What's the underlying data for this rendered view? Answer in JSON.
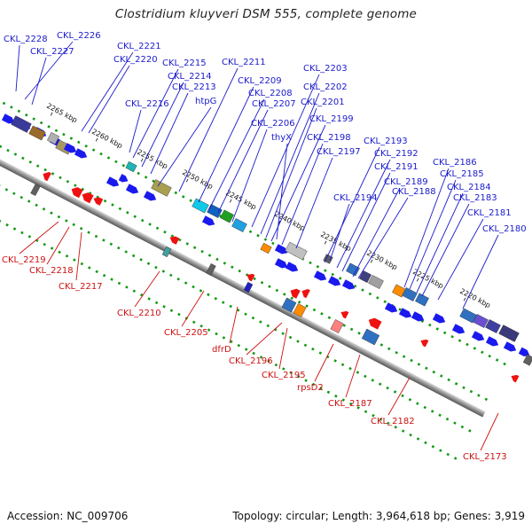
{
  "title": "Clostridium kluyveri DSM 555, complete genome",
  "footer": {
    "accession": "Accession: NC_009706",
    "summary": "Topology: circular; Length: 3,964,618 bp; Genes: 3,919"
  },
  "colors": {
    "forward_label": "#1a1acc",
    "reverse_label": "#cc1111",
    "forward_gene": "#1a1aee",
    "reverse_gene": "#ee1111",
    "dots": "#119911"
  },
  "kbp_ticks": [
    "2265 kbp",
    "2260 kbp",
    "2255 kbp",
    "2250 kbp",
    "2245 kbp",
    "2240 kbp",
    "2235 kbp",
    "2230 kbp",
    "2225 kbp",
    "2220 kbp"
  ],
  "forward_labels": [
    "CKL_2228",
    "CKL_2226",
    "CKL_2227",
    "CKL_2221",
    "CKL_2220",
    "CKL_2215",
    "CKL_2214",
    "CKL_2213",
    "CKL_2216",
    "htpG",
    "CKL_2211",
    "CKL_2209",
    "CKL_2208",
    "CKL_2207",
    "CKL_2206",
    "CKL_2203",
    "CKL_2202",
    "CKL_2201",
    "CKL_2199",
    "thyX",
    "CKL_2198",
    "CKL_2197",
    "CKL_2193",
    "CKL_2192",
    "CKL_2191",
    "CKL_2194",
    "CKL_2189",
    "CKL_2188",
    "CKL_2186",
    "CKL_2185",
    "CKL_2184",
    "CKL_2183",
    "CKL_2181",
    "CKL_2180"
  ],
  "reverse_labels": [
    "CKL_2219",
    "CKL_2218",
    "CKL_2217",
    "CKL_2210",
    "CKL_2205",
    "dfrD",
    "CKL_2196",
    "CKL_2195",
    "rpsD2",
    "CKL_2187",
    "CKL_2182",
    "CKL_2173"
  ]
}
